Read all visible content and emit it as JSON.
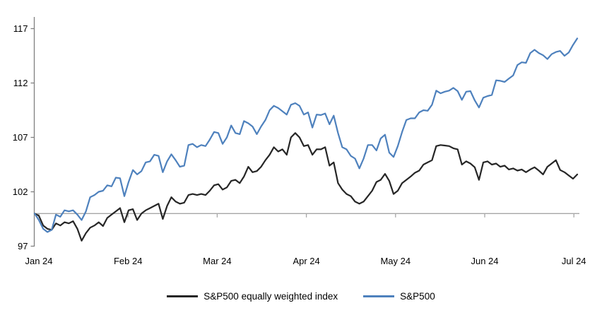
{
  "chart_data": {
    "type": "line",
    "title": "",
    "xlabel": "",
    "ylabel": "",
    "x_tick_labels": [
      "Jan 24",
      "Feb 24",
      "Mar 24",
      "Apr 24",
      "May 24",
      "Jun 24",
      "Jul 24"
    ],
    "y_tick_labels": [
      "97",
      "102",
      "107",
      "112",
      "117"
    ],
    "y_ticks": [
      97,
      102,
      107,
      112,
      117
    ],
    "ylim": [
      97,
      118
    ],
    "baseline_value": 100,
    "grid": "off",
    "legend_position": "bottom-center",
    "x_description": "daily data points from Jan 2024 to early Jul 2024, indexed to 100 at start",
    "series": [
      {
        "name": "S&P500 equally weighted index",
        "color": "#262626",
        "values": [
          100.0,
          99.8,
          98.9,
          98.6,
          98.5,
          99.1,
          98.9,
          99.2,
          99.1,
          99.3,
          98.6,
          97.5,
          98.2,
          98.7,
          98.9,
          99.2,
          98.85,
          99.6,
          99.9,
          100.2,
          100.5,
          99.2,
          100.3,
          100.4,
          99.4,
          100.0,
          100.3,
          100.5,
          100.7,
          100.9,
          99.5,
          100.7,
          101.5,
          101.1,
          100.9,
          101.0,
          101.7,
          101.8,
          101.7,
          101.8,
          101.7,
          102.1,
          102.6,
          102.7,
          102.2,
          102.4,
          103.0,
          103.1,
          102.8,
          103.4,
          104.3,
          103.8,
          103.9,
          104.3,
          104.9,
          105.4,
          106.1,
          105.7,
          105.9,
          105.4,
          107.0,
          107.4,
          107.0,
          106.2,
          106.3,
          105.4,
          105.9,
          105.9,
          106.1,
          104.4,
          104.7,
          102.8,
          102.2,
          101.8,
          101.6,
          101.1,
          100.9,
          101.1,
          101.6,
          102.1,
          102.9,
          103.1,
          103.65,
          103.0,
          101.8,
          102.1,
          102.8,
          103.1,
          103.4,
          103.75,
          103.95,
          104.5,
          104.7,
          104.9,
          106.2,
          106.3,
          106.25,
          106.2,
          106.0,
          105.9,
          104.5,
          104.8,
          104.6,
          104.25,
          103.1,
          104.7,
          104.8,
          104.5,
          104.6,
          104.3,
          104.4,
          104.05,
          104.15,
          103.95,
          104.05,
          103.8,
          104.05,
          104.25,
          103.95,
          103.6,
          104.3,
          104.6,
          104.9,
          104.0,
          103.8,
          103.5,
          103.2,
          103.6
        ]
      },
      {
        "name": "S&P500",
        "color": "#4E81BD",
        "values": [
          100.0,
          99.4,
          98.6,
          98.3,
          98.5,
          99.9,
          99.7,
          100.3,
          100.2,
          100.3,
          99.9,
          99.4,
          100.2,
          101.5,
          101.7,
          102.0,
          102.1,
          102.6,
          102.5,
          103.3,
          103.25,
          101.6,
          102.9,
          104.0,
          103.6,
          103.9,
          104.7,
          104.8,
          105.4,
          105.3,
          103.8,
          104.8,
          105.45,
          104.9,
          104.3,
          104.4,
          106.3,
          106.4,
          106.1,
          106.3,
          106.2,
          106.8,
          107.5,
          107.4,
          106.4,
          107.0,
          108.1,
          107.4,
          107.3,
          108.5,
          108.3,
          108.0,
          107.3,
          108.0,
          108.6,
          109.5,
          109.9,
          109.7,
          109.4,
          109.1,
          110.0,
          110.15,
          109.9,
          109.1,
          109.3,
          107.9,
          109.1,
          109.05,
          109.2,
          108.2,
          109.0,
          107.4,
          106.1,
          105.9,
          105.3,
          105.05,
          104.15,
          105.05,
          106.3,
          106.3,
          105.8,
          106.9,
          107.25,
          105.6,
          105.2,
          106.2,
          107.5,
          108.6,
          108.75,
          108.75,
          109.3,
          109.5,
          109.45,
          110.0,
          111.3,
          111.05,
          111.2,
          111.3,
          111.55,
          111.25,
          110.45,
          111.2,
          111.25,
          110.4,
          109.75,
          110.65,
          110.8,
          110.9,
          112.25,
          112.2,
          112.1,
          112.4,
          112.7,
          113.65,
          113.9,
          113.85,
          114.75,
          115.05,
          114.75,
          114.55,
          114.2,
          114.65,
          114.85,
          114.95,
          114.5,
          114.8,
          115.5,
          116.1
        ]
      }
    ]
  },
  "legend": {
    "items": [
      {
        "label": "S&P500 equally weighted index",
        "color": "#262626"
      },
      {
        "label": "S&P500",
        "color": "#4E81BD"
      }
    ]
  },
  "colors": {
    "background": "#FFFFFF",
    "axis_line": "#808080",
    "baseline_100": "#A6A6A6",
    "equal_weight_line": "#262626",
    "sp500_line": "#4E81BD",
    "label_text": "#000000"
  }
}
